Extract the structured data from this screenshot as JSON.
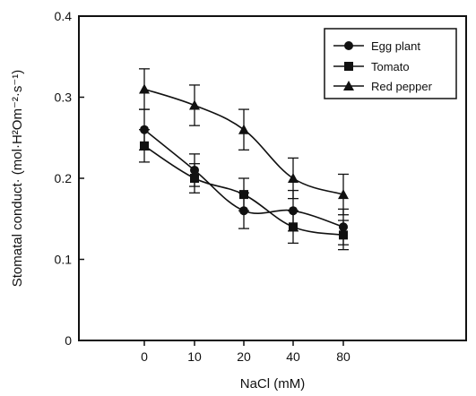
{
  "chart_data": {
    "type": "line",
    "xlabel": "NaCl (mM)",
    "ylabel": "Stomatal conduct· (mol·H²Om⁻²·s⁻¹)",
    "categories": [
      "0",
      "10",
      "20",
      "40",
      "80"
    ],
    "ylim": [
      0,
      0.4
    ],
    "yticks": [
      "0",
      "0.1",
      "0.2",
      "0.3",
      "0.4"
    ],
    "grid": false,
    "legend_position": "top-right",
    "series": [
      {
        "name": "Egg plant",
        "marker": "circle",
        "values": [
          0.26,
          0.21,
          0.16,
          0.16,
          0.14
        ],
        "errors": [
          0.025,
          0.02,
          0.022,
          0.025,
          0.022
        ]
      },
      {
        "name": "Tomato",
        "marker": "square",
        "values": [
          0.24,
          0.2,
          0.18,
          0.14,
          0.13
        ],
        "errors": [
          0.02,
          0.018,
          0.02,
          0.02,
          0.018
        ]
      },
      {
        "name": "Red pepper",
        "marker": "triangle",
        "values": [
          0.31,
          0.29,
          0.26,
          0.2,
          0.18
        ],
        "errors": [
          0.025,
          0.025,
          0.025,
          0.025,
          0.025
        ]
      }
    ]
  }
}
